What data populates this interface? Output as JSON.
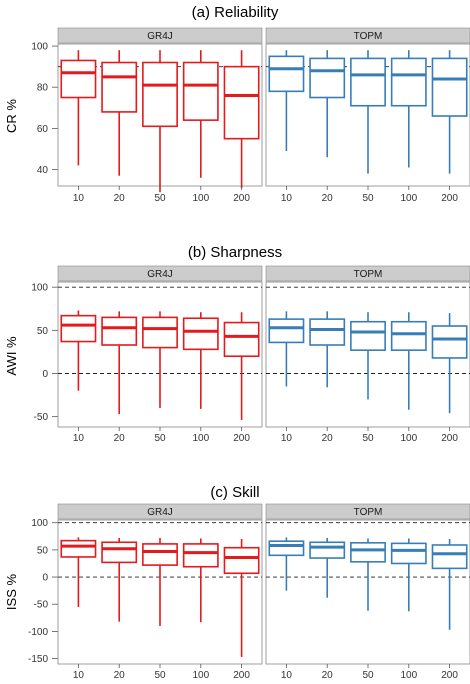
{
  "chart_data": [
    {
      "type": "box",
      "title": "(a) Reliability",
      "ylabel": "CR %",
      "xlabel": "",
      "ylim": [
        32,
        101
      ],
      "yticks": [
        40,
        60,
        80,
        100
      ],
      "ytick_labels": [
        "40",
        "60",
        "80",
        "100"
      ],
      "reference_lines": [
        90
      ],
      "categories": [
        "10",
        "20",
        "50",
        "100",
        "200"
      ],
      "panels": [
        {
          "name": "GR4J",
          "color": "#e41a1c",
          "boxes": [
            {
              "min": 42,
              "q1": 75,
              "median": 87,
              "q3": 93,
              "max": 98
            },
            {
              "min": 37,
              "q1": 68,
              "median": 85,
              "q3": 92,
              "max": 98
            },
            {
              "min": 29,
              "q1": 61,
              "median": 81,
              "q3": 92,
              "max": 98
            },
            {
              "min": 36,
              "q1": 64,
              "median": 81,
              "q3": 92,
              "max": 98
            },
            {
              "min": 31,
              "q1": 55,
              "median": 76,
              "q3": 90,
              "max": 98
            }
          ]
        },
        {
          "name": "TOPM",
          "color": "#377eb8",
          "boxes": [
            {
              "min": 49,
              "q1": 78,
              "median": 89,
              "q3": 95,
              "max": 98
            },
            {
              "min": 46,
              "q1": 75,
              "median": 88,
              "q3": 94,
              "max": 98
            },
            {
              "min": 38,
              "q1": 71,
              "median": 86,
              "q3": 94,
              "max": 98
            },
            {
              "min": 41,
              "q1": 71,
              "median": 86,
              "q3": 94,
              "max": 98
            },
            {
              "min": 38,
              "q1": 66,
              "median": 84,
              "q3": 94,
              "max": 98
            }
          ]
        }
      ]
    },
    {
      "type": "box",
      "title": "(b) Sharpness",
      "ylabel": "AWI %",
      "xlabel": "",
      "ylim": [
        -62,
        106
      ],
      "yticks": [
        -50,
        0,
        50,
        100
      ],
      "ytick_labels": [
        "-50",
        "0",
        "50",
        "100"
      ],
      "reference_lines": [
        0,
        100
      ],
      "categories": [
        "10",
        "20",
        "50",
        "100",
        "200"
      ],
      "panels": [
        {
          "name": "GR4J",
          "color": "#e41a1c",
          "boxes": [
            {
              "min": -20,
              "q1": 37,
              "median": 56,
              "q3": 67,
              "max": 73
            },
            {
              "min": -47,
              "q1": 33,
              "median": 53,
              "q3": 65,
              "max": 72
            },
            {
              "min": -40,
              "q1": 30,
              "median": 52,
              "q3": 65,
              "max": 72
            },
            {
              "min": -41,
              "q1": 28,
              "median": 49,
              "q3": 64,
              "max": 71
            },
            {
              "min": -54,
              "q1": 20,
              "median": 43,
              "q3": 59,
              "max": 71
            }
          ]
        },
        {
          "name": "TOPM",
          "color": "#377eb8",
          "boxes": [
            {
              "min": -15,
              "q1": 36,
              "median": 53,
              "q3": 63,
              "max": 72
            },
            {
              "min": -16,
              "q1": 33,
              "median": 51,
              "q3": 63,
              "max": 72
            },
            {
              "min": -30,
              "q1": 27,
              "median": 48,
              "q3": 60,
              "max": 71
            },
            {
              "min": -42,
              "q1": 27,
              "median": 46,
              "q3": 60,
              "max": 71
            },
            {
              "min": -46,
              "q1": 18,
              "median": 40,
              "q3": 55,
              "max": 70
            }
          ]
        }
      ]
    },
    {
      "type": "box",
      "title": "(c) Skill",
      "ylabel": "ISS %",
      "xlabel": "",
      "ylim": [
        -160,
        105
      ],
      "yticks": [
        -150,
        -100,
        -50,
        0,
        50,
        100
      ],
      "ytick_labels": [
        "-150",
        "-100",
        "-50",
        "0",
        "50",
        "100"
      ],
      "reference_lines": [
        0,
        100
      ],
      "categories": [
        "10",
        "20",
        "50",
        "100",
        "200"
      ],
      "panels": [
        {
          "name": "GR4J",
          "color": "#e41a1c",
          "boxes": [
            {
              "min": -55,
              "q1": 37,
              "median": 57,
              "q3": 67,
              "max": 73
            },
            {
              "min": -82,
              "q1": 27,
              "median": 52,
              "q3": 64,
              "max": 72
            },
            {
              "min": -90,
              "q1": 22,
              "median": 47,
              "q3": 61,
              "max": 72
            },
            {
              "min": -83,
              "q1": 19,
              "median": 45,
              "q3": 61,
              "max": 71
            },
            {
              "min": -147,
              "q1": 7,
              "median": 36,
              "q3": 54,
              "max": 70
            }
          ]
        },
        {
          "name": "TOPM",
          "color": "#377eb8",
          "boxes": [
            {
              "min": -25,
              "q1": 40,
              "median": 58,
              "q3": 66,
              "max": 73
            },
            {
              "min": -38,
              "q1": 35,
              "median": 55,
              "q3": 64,
              "max": 72
            },
            {
              "min": -62,
              "q1": 28,
              "median": 50,
              "q3": 63,
              "max": 71
            },
            {
              "min": -63,
              "q1": 25,
              "median": 49,
              "q3": 62,
              "max": 71
            },
            {
              "min": -97,
              "q1": 16,
              "median": 43,
              "q3": 59,
              "max": 70
            }
          ]
        }
      ]
    }
  ]
}
